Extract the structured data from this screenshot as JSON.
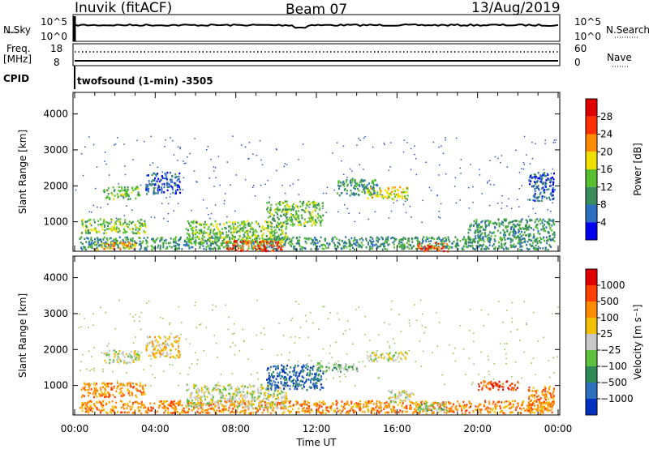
{
  "header": {
    "station": "Inuvik (fitACF)",
    "beam": "Beam 07",
    "date": "13/Aug/2019"
  },
  "strips": {
    "nsky_label": "N.Sky",
    "nsky_ticks": [
      "10^5",
      "10^0"
    ],
    "nsearch_label": "N.Search",
    "freq_label": "Freq.",
    "freq_unit": "[MHz]",
    "freq_ticks": [
      "18",
      "8"
    ],
    "nave_label": "Nave",
    "nave_ticks": [
      "60",
      "0"
    ],
    "cpid_label": "CPID",
    "cpid_text": "twofsound (1-min) -3505"
  },
  "chart_data": [
    {
      "type": "heatmap",
      "panel": "power",
      "ylabel": "Slant Range [km]",
      "yticks": [
        1000,
        2000,
        3000,
        4000
      ],
      "ylim": [
        180,
        4600
      ],
      "xlim": [
        0,
        24
      ],
      "colorbar_label": "Power [dB]",
      "colorbar_ticks": [
        "4",
        "8",
        "12",
        "16",
        "20",
        "24",
        "28"
      ],
      "colors": [
        "#0000ee",
        "#2d6fbf",
        "#3a8c5c",
        "#58c030",
        "#f0e000",
        "#ff8c00",
        "#ff3000",
        "#e00000"
      ],
      "regions": [
        {
          "t0": 0.2,
          "t1": 23.8,
          "r0": 250,
          "r1": 600,
          "level": 2
        },
        {
          "t0": 0.3,
          "t1": 3.5,
          "r0": 700,
          "r1": 1100,
          "level": 3
        },
        {
          "t0": 1.4,
          "t1": 3.2,
          "r0": 1650,
          "r1": 2000,
          "level": 3
        },
        {
          "t0": 3.5,
          "t1": 5.2,
          "r0": 1800,
          "r1": 2400,
          "level": 1
        },
        {
          "t0": 5.5,
          "t1": 10.5,
          "r0": 400,
          "r1": 1050,
          "level": 3
        },
        {
          "t0": 7.5,
          "t1": 10.3,
          "r0": 200,
          "r1": 500,
          "level": 6
        },
        {
          "t0": 9.5,
          "t1": 12.3,
          "r0": 900,
          "r1": 1600,
          "level": 3
        },
        {
          "t0": 14.5,
          "t1": 16.5,
          "r0": 1650,
          "r1": 2000,
          "level": 4
        },
        {
          "t0": 13.0,
          "t1": 15.0,
          "r0": 1750,
          "r1": 2200,
          "level": 2
        },
        {
          "t0": 17.0,
          "t1": 18.5,
          "r0": 200,
          "r1": 450,
          "level": 6
        },
        {
          "t0": 19.5,
          "t1": 23.8,
          "r0": 500,
          "r1": 1100,
          "level": 2
        },
        {
          "t0": 1.0,
          "t1": 3.0,
          "r0": 250,
          "r1": 450,
          "level": 5
        },
        {
          "t0": 22.5,
          "t1": 23.8,
          "r0": 1600,
          "r1": 2400,
          "level": 1
        }
      ]
    },
    {
      "type": "heatmap",
      "panel": "velocity",
      "ylabel": "Slant Range [km]",
      "yticks": [
        1000,
        2000,
        3000,
        4000
      ],
      "ylim": [
        180,
        4600
      ],
      "xlim": [
        0,
        24
      ],
      "xticks": [
        "00:00",
        "04:00",
        "08:00",
        "12:00",
        "16:00",
        "20:00",
        "00:00"
      ],
      "xlabel": "Time UT",
      "colorbar_label": "Velocity [m s⁻¹]",
      "colorbar_ticks": [
        "1000",
        "500",
        "100",
        "25",
        "−25",
        "−100",
        "−500",
        "−1000"
      ],
      "colors": [
        "#0030c0",
        "#2f6fbf",
        "#2e8b57",
        "#60c040",
        "#c8c8c8",
        "#f0c000",
        "#ff8c00",
        "#ff4000",
        "#e00000"
      ],
      "regions": [
        {
          "t0": 0.2,
          "t1": 23.8,
          "r0": 250,
          "r1": 600,
          "level": 6
        },
        {
          "t0": 0.3,
          "t1": 3.5,
          "r0": 700,
          "r1": 1100,
          "level": 6
        },
        {
          "t0": 1.4,
          "t1": 3.2,
          "r0": 1650,
          "r1": 2000,
          "level": 4
        },
        {
          "t0": 3.5,
          "t1": 5.2,
          "r0": 1800,
          "r1": 2400,
          "level": 5
        },
        {
          "t0": 5.5,
          "t1": 10.5,
          "r0": 400,
          "r1": 1050,
          "level": 4
        },
        {
          "t0": 9.5,
          "t1": 12.3,
          "r0": 900,
          "r1": 1600,
          "level": 1
        },
        {
          "t0": 12.0,
          "t1": 14.0,
          "r0": 1400,
          "r1": 1650,
          "level": 3
        },
        {
          "t0": 14.5,
          "t1": 16.5,
          "r0": 1700,
          "r1": 1950,
          "level": 4
        },
        {
          "t0": 15.5,
          "t1": 16.8,
          "r0": 550,
          "r1": 900,
          "level": 4
        },
        {
          "t0": 17.0,
          "t1": 18.5,
          "r0": 300,
          "r1": 550,
          "level": 3
        },
        {
          "t0": 20.0,
          "t1": 22.0,
          "r0": 900,
          "r1": 1150,
          "level": 7
        },
        {
          "t0": 22.5,
          "t1": 23.8,
          "r0": 250,
          "r1": 1000,
          "level": 6
        }
      ]
    }
  ]
}
